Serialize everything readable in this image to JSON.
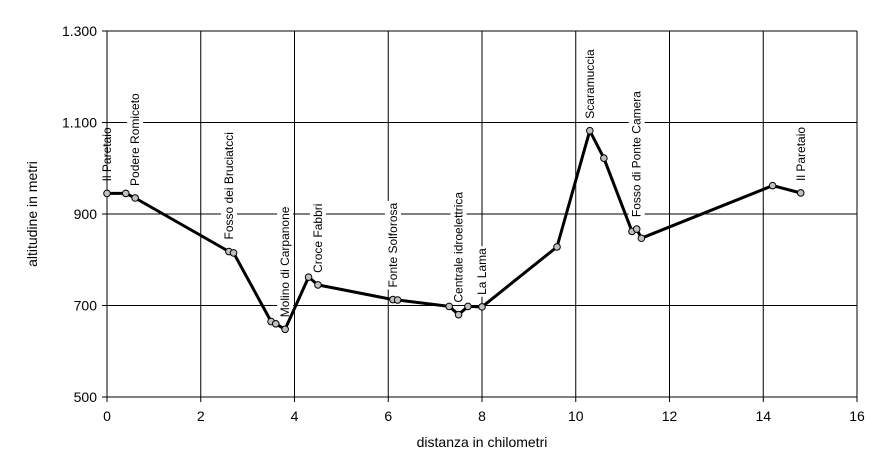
{
  "chart_data": {
    "type": "line",
    "title": "",
    "xlabel": "distanza in chilometri",
    "ylabel": "altitudine  in metri",
    "xlim": [
      0,
      16
    ],
    "ylim": [
      500,
      1300
    ],
    "x_ticks": [
      0,
      2,
      4,
      6,
      8,
      10,
      12,
      14,
      16
    ],
    "x_tick_labels": [
      "0",
      "2",
      "4",
      "6",
      "8",
      "10",
      "12",
      "14",
      "16"
    ],
    "y_ticks": [
      500,
      700,
      900,
      1100,
      1300
    ],
    "y_tick_labels": [
      "500",
      "700",
      "900",
      "1.100",
      "1.300"
    ],
    "grid": true,
    "legend": "none",
    "line_color": "#000000",
    "marker_color": "#c0c0c0",
    "series": [
      {
        "x": [
          0.0,
          0.4,
          0.6,
          2.6,
          2.7,
          3.5,
          3.6,
          3.8,
          4.3,
          4.5,
          6.1,
          6.2,
          7.3,
          7.5,
          7.7,
          8.0,
          9.6,
          10.3,
          10.6,
          11.2,
          11.3,
          11.4,
          14.2,
          14.8
        ],
        "y": [
          945,
          945,
          935,
          818,
          815,
          665,
          660,
          648,
          762,
          745,
          713,
          712,
          698,
          680,
          698,
          697,
          828,
          1082,
          1022,
          862,
          867,
          847,
          962,
          946
        ]
      }
    ],
    "annotations": [
      {
        "text": "Il Paretaio",
        "x": 0.0
      },
      {
        "text": "Podere Romiceto",
        "x": 0.6
      },
      {
        "text": "Fosso dei Bruciatcci",
        "x": 2.6
      },
      {
        "text": "Molino di Carpanone",
        "x": 3.8
      },
      {
        "text": "Croce Fabbri",
        "x": 4.5
      },
      {
        "text": "Fonte Solforosa",
        "x": 6.1
      },
      {
        "text": "Centrale idroelettrica",
        "x": 7.5
      },
      {
        "text": "La Lama",
        "x": 8.0
      },
      {
        "text": "Scaramuccia",
        "x": 10.3
      },
      {
        "text": "Fosso di Ponte Camera",
        "x": 11.3
      },
      {
        "text": "Il Paretaio",
        "x": 14.8
      }
    ]
  }
}
